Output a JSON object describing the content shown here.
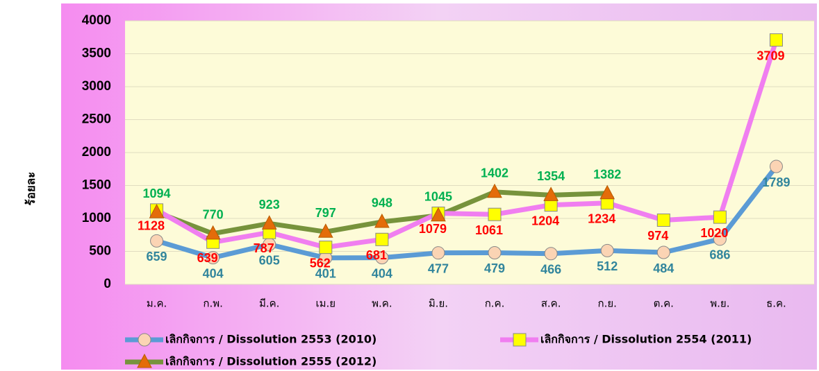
{
  "chart_data": {
    "type": "line",
    "ylabel": "ร้อยละ",
    "categories": [
      "ม.ค.",
      "ก.พ.",
      "มี.ค.",
      "เม.ย",
      "พ.ค.",
      "มิ.ย.",
      "ก.ค.",
      "ส.ค.",
      "ก.ย.",
      "ต.ค.",
      "พ.ย.",
      "ธ.ค."
    ],
    "series": [
      {
        "name": "เลิกกิจการ / Dissolution 2553 (2010)",
        "color": "#5b9bd5",
        "marker": "circle",
        "marker_color": "#fbd4b4",
        "label_color": "#31859c",
        "values": [
          659,
          404,
          605,
          401,
          404,
          477,
          479,
          466,
          512,
          484,
          686,
          1789
        ]
      },
      {
        "name": "เลิกกิจการ / Dissolution 2554 (2011)",
        "color": "#f07ef0",
        "marker": "square",
        "marker_color": "#ffff00",
        "label_color": "#ff0000",
        "values": [
          1128,
          639,
          787,
          562,
          681,
          1079,
          1061,
          1204,
          1234,
          974,
          1020,
          3709
        ]
      },
      {
        "name": "เลิกกิจการ / Dissolution 2555 (2012)",
        "color": "#77933c",
        "marker": "triangle",
        "marker_color": "#e46c0a",
        "label_color": "#00b050",
        "values": [
          1094,
          770,
          923,
          797,
          948,
          1045,
          1402,
          1354,
          1382,
          null,
          null,
          null
        ]
      }
    ],
    "ylim": [
      0,
      4000
    ],
    "yticks": [
      0,
      500,
      1000,
      1500,
      2000,
      2500,
      3000,
      3500,
      4000
    ],
    "grid": true
  }
}
